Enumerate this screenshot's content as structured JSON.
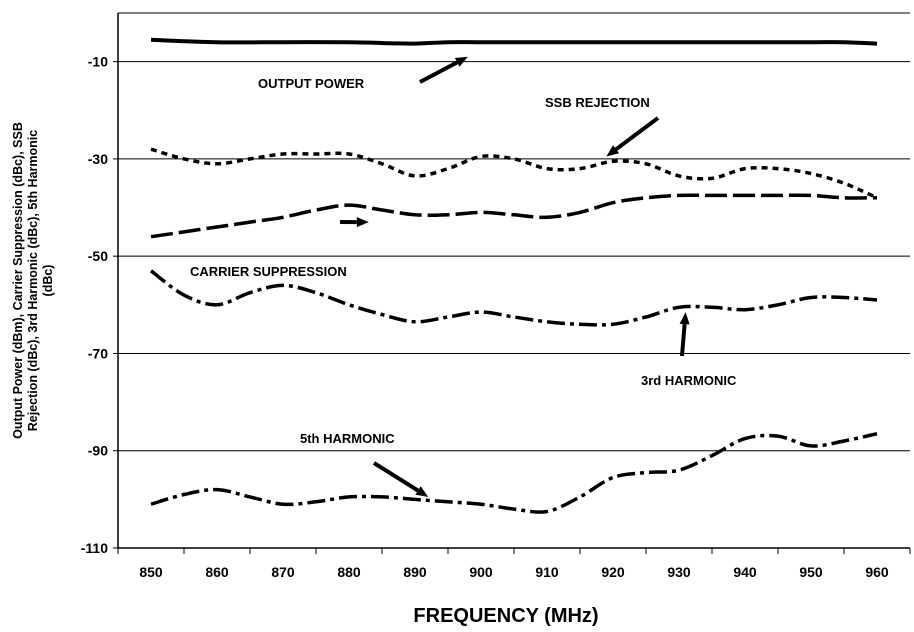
{
  "chart_data": {
    "type": "line",
    "xlabel": "FREQUENCY (MHz)",
    "ylabel_lines": [
      "Output Power (dBm), Carrier Suppression (dBc), SSB",
      "Rejection (dBc), 3rd Harmonic (dBc), 5th Harmonic",
      "(dBc)"
    ],
    "xlim": [
      845,
      965
    ],
    "ylim": [
      -110,
      0
    ],
    "x_ticks": [
      850,
      860,
      870,
      880,
      890,
      900,
      910,
      920,
      930,
      940,
      950,
      960
    ],
    "y_ticks": [
      -10,
      -30,
      -50,
      -70,
      -90,
      -110
    ],
    "grid": "horizontal",
    "series": [
      {
        "name": "OUTPUT POWER",
        "style": "solid",
        "color": "#000000",
        "x": [
          850,
          860,
          870,
          880,
          886,
          890,
          895,
          900,
          910,
          920,
          930,
          940,
          950,
          955,
          960
        ],
        "y": [
          -5.5,
          -6.0,
          -6.0,
          -6.0,
          -6.2,
          -6.3,
          -6.0,
          -6.0,
          -6.0,
          -6.0,
          -6.0,
          -6.0,
          -6.0,
          -6.0,
          -6.3
        ]
      },
      {
        "name": "SSB REJECTION",
        "style": "dotted",
        "color": "#000000",
        "x": [
          850,
          855,
          860,
          865,
          870,
          875,
          880,
          885,
          890,
          895,
          900,
          905,
          910,
          915,
          920,
          925,
          930,
          935,
          940,
          945,
          950,
          955,
          960
        ],
        "y": [
          -28,
          -30,
          -31,
          -30,
          -29,
          -29,
          -29,
          -31,
          -33.5,
          -32,
          -29.5,
          -30,
          -32,
          -32,
          -30.5,
          -31,
          -33.5,
          -34,
          -32,
          -32,
          -33,
          -35,
          -38
        ]
      },
      {
        "name": "CARRIER SUPPRESSION",
        "style": "long-dash",
        "color": "#000000",
        "x": [
          850,
          855,
          860,
          865,
          870,
          875,
          880,
          885,
          890,
          895,
          900,
          905,
          910,
          915,
          920,
          925,
          930,
          935,
          940,
          945,
          950,
          955,
          960
        ],
        "y": [
          -46,
          -45,
          -44,
          -43,
          -42,
          -40.5,
          -39.5,
          -40.5,
          -41.5,
          -41.5,
          -41,
          -41.5,
          -42,
          -41,
          -39,
          -38,
          -37.5,
          -37.5,
          -37.5,
          -37.5,
          -37.5,
          -38,
          -38
        ]
      },
      {
        "name": "3rd HARMONIC",
        "style": "dash-dot",
        "color": "#000000",
        "x": [
          850,
          855,
          860,
          865,
          870,
          875,
          880,
          885,
          890,
          895,
          900,
          905,
          910,
          915,
          920,
          925,
          930,
          935,
          940,
          945,
          950,
          955,
          960
        ],
        "y": [
          -53,
          -58,
          -60,
          -57.5,
          -56,
          -57.5,
          -60,
          -62,
          -63.5,
          -62.5,
          -61.5,
          -62.5,
          -63.5,
          -64,
          -64,
          -62.5,
          -60.5,
          -60.5,
          -61,
          -60,
          -58.5,
          -58.5,
          -59
        ]
      },
      {
        "name": "5th HARMONIC",
        "style": "dash-dot",
        "color": "#000000",
        "x": [
          850,
          855,
          860,
          865,
          870,
          875,
          880,
          885,
          890,
          895,
          900,
          905,
          910,
          915,
          920,
          925,
          930,
          935,
          940,
          945,
          950,
          955,
          960
        ],
        "y": [
          -101,
          -99,
          -98,
          -99.5,
          -101,
          -100.5,
          -99.5,
          -99.5,
          -100,
          -100.5,
          -101,
          -102,
          -102.5,
          -99.5,
          -95.5,
          -94.5,
          -94,
          -91,
          -87.5,
          -87,
          -89,
          -88,
          -86.5
        ]
      }
    ],
    "annotations": [
      {
        "text": "OUTPUT POWER",
        "series": "OUTPUT POWER",
        "at_x": 898,
        "at_y": -9.0
      },
      {
        "text": "SSB REJECTION",
        "series": "SSB REJECTION",
        "at_x": 919,
        "at_y": -29.5
      },
      {
        "text": "CARRIER SUPPRESSION",
        "series": "CARRIER SUPPRESSION",
        "at_x": 883,
        "at_y": -43
      },
      {
        "text": "3rd HARMONIC",
        "series": "3rd HARMONIC",
        "at_x": 931,
        "at_y": -61.5
      },
      {
        "text": "5th HARMONIC",
        "series": "5th HARMONIC",
        "at_x": 892,
        "at_y": -99.5
      }
    ]
  }
}
